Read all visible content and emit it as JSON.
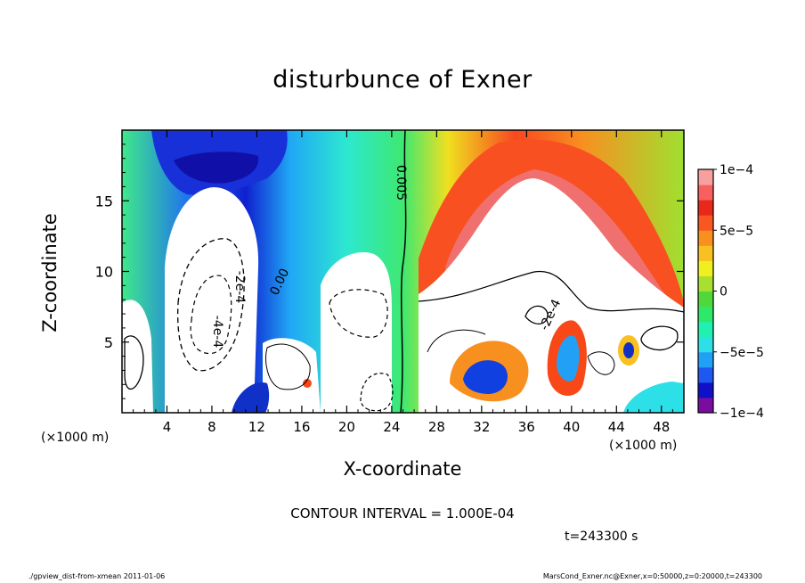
{
  "chart_data": {
    "type": "heatmap",
    "title": "disturbunce of Exner",
    "xlabel": "X-coordinate",
    "ylabel": "Z-coordinate",
    "x_unit": "(×1000 m)",
    "x_ticks": [
      4,
      8,
      12,
      16,
      20,
      24,
      28,
      32,
      36,
      40,
      44,
      48
    ],
    "y_ticks": [
      5,
      10,
      15
    ],
    "xlim": [
      0,
      50
    ],
    "ylim": [
      0,
      20
    ],
    "colorbar": {
      "range": [
        -0.0001,
        0.0001
      ],
      "tick_labels": [
        "1e−4",
        "5e−5",
        "0",
        "−5e−5",
        "−1e−4"
      ],
      "tick_values": [
        0.0001,
        5e-05,
        0,
        -5e-05,
        -0.0001
      ],
      "colors": [
        "#7a0da0",
        "#1010c8",
        "#1f58f0",
        "#22a0f5",
        "#2de0e8",
        "#20f0b0",
        "#2ee86a",
        "#50d83a",
        "#a8e030",
        "#f0f020",
        "#f8c020",
        "#f89020",
        "#f85820",
        "#e82818",
        "#f86060",
        "#f8a0a0"
      ]
    },
    "contour_labels": [
      "0.005",
      "0.00",
      "-2e-4",
      "-4e-4",
      "-2e-4"
    ],
    "contour_interval": "CONTOUR INTERVAL = 1.000E-04",
    "time_label": "t=243300 s"
  },
  "footer": {
    "left": "./gpview_dist-from-xmean  2011-01-06",
    "right": "MarsCond_Exner.nc@Exner,x=0:50000,z=0:20000,t=243300"
  },
  "colors": {
    "background": "#ffffff",
    "axis": "#000000"
  }
}
